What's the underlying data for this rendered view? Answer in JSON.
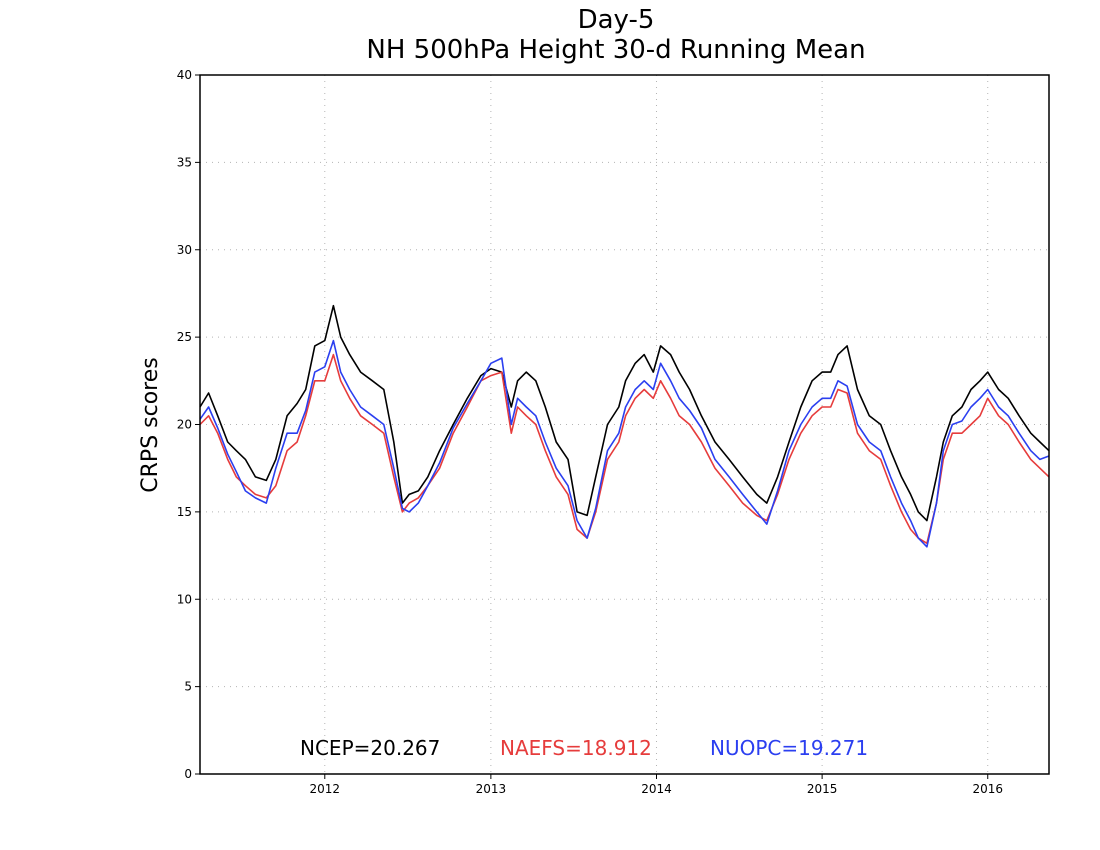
{
  "chart_data": {
    "type": "line",
    "title": "Day-5",
    "subtitle": "NH 500hPa Height 30-d Running Mean",
    "xlabel": "",
    "ylabel": "CRPS scores",
    "xlim": [
      "2011-04-01",
      "2016-05-15"
    ],
    "ylim": [
      0,
      40
    ],
    "yticks": [
      0,
      5,
      10,
      15,
      20,
      25,
      30,
      35,
      40
    ],
    "xticks": [
      {
        "label": "2012",
        "date": "2012-01-01"
      },
      {
        "label": "2013",
        "date": "2013-01-01"
      },
      {
        "label": "2014",
        "date": "2014-01-01"
      },
      {
        "label": "2015",
        "date": "2015-01-01"
      },
      {
        "label": "2016",
        "date": "2016-01-01"
      }
    ],
    "grid": true,
    "legend_placement": "bottom",
    "series": [
      {
        "name": "NCEP",
        "legend_text": "NCEP=20.267",
        "color": "#000000",
        "x": [
          "2011-04-01",
          "2011-04-20",
          "2011-05-10",
          "2011-06-01",
          "2011-06-20",
          "2011-07-10",
          "2011-08-01",
          "2011-08-25",
          "2011-09-15",
          "2011-10-10",
          "2011-11-01",
          "2011-11-20",
          "2011-12-10",
          "2012-01-01",
          "2012-01-20",
          "2012-02-05",
          "2012-02-25",
          "2012-03-20",
          "2012-04-15",
          "2012-05-10",
          "2012-06-01",
          "2012-06-20",
          "2012-07-05",
          "2012-07-25",
          "2012-08-15",
          "2012-09-10",
          "2012-10-10",
          "2012-11-10",
          "2012-12-10",
          "2013-01-01",
          "2013-01-25",
          "2013-02-15",
          "2013-03-01",
          "2013-03-20",
          "2013-04-10",
          "2013-05-01",
          "2013-05-25",
          "2013-06-20",
          "2013-07-10",
          "2013-08-01",
          "2013-08-20",
          "2013-09-15",
          "2013-10-10",
          "2013-10-25",
          "2013-11-15",
          "2013-12-05",
          "2013-12-25",
          "2014-01-10",
          "2014-02-01",
          "2014-02-20",
          "2014-03-15",
          "2014-04-10",
          "2014-05-10",
          "2014-06-10",
          "2014-07-10",
          "2014-08-10",
          "2014-09-01",
          "2014-09-25",
          "2014-10-20",
          "2014-11-15",
          "2014-12-10",
          "2015-01-01",
          "2015-01-20",
          "2015-02-05",
          "2015-02-25",
          "2015-03-20",
          "2015-04-15",
          "2015-05-10",
          "2015-06-01",
          "2015-06-25",
          "2015-07-15",
          "2015-08-01",
          "2015-08-20",
          "2015-09-10",
          "2015-09-25",
          "2015-10-15",
          "2015-11-05",
          "2015-11-25",
          "2015-12-15",
          "2016-01-01",
          "2016-01-25",
          "2016-02-15",
          "2016-03-10",
          "2016-04-05",
          "2016-04-25",
          "2016-05-15"
        ],
        "values": [
          21.0,
          21.8,
          20.5,
          19.0,
          18.5,
          18.0,
          17.0,
          16.8,
          18.0,
          20.5,
          21.2,
          22.0,
          24.5,
          24.8,
          26.8,
          25.0,
          24.0,
          23.0,
          22.5,
          22.0,
          19.0,
          15.5,
          16.0,
          16.2,
          17.0,
          18.5,
          20.0,
          21.5,
          22.8,
          23.2,
          23.0,
          21.0,
          22.5,
          23.0,
          22.5,
          21.0,
          19.0,
          18.0,
          15.0,
          14.8,
          17.0,
          20.0,
          21.0,
          22.5,
          23.5,
          24.0,
          23.0,
          24.5,
          24.0,
          23.0,
          22.0,
          20.5,
          19.0,
          18.0,
          17.0,
          16.0,
          15.5,
          17.0,
          19.0,
          21.0,
          22.5,
          23.0,
          23.0,
          24.0,
          24.5,
          22.0,
          20.5,
          20.0,
          18.5,
          17.0,
          16.0,
          15.0,
          14.5,
          17.0,
          19.0,
          20.5,
          21.0,
          22.0,
          22.5,
          23.0,
          22.0,
          21.5,
          20.5,
          19.5,
          19.0,
          18.5
        ]
      },
      {
        "name": "NAEFS",
        "legend_text": "NAEFS=18.912",
        "color": "#e63c3c",
        "x": [
          "2011-04-01",
          "2011-04-20",
          "2011-05-10",
          "2011-06-01",
          "2011-06-20",
          "2011-07-10",
          "2011-08-01",
          "2011-08-25",
          "2011-09-15",
          "2011-10-10",
          "2011-11-01",
          "2011-11-20",
          "2011-12-10",
          "2012-01-01",
          "2012-01-20",
          "2012-02-05",
          "2012-02-25",
          "2012-03-20",
          "2012-04-15",
          "2012-05-10",
          "2012-06-01",
          "2012-06-20",
          "2012-07-05",
          "2012-07-25",
          "2012-08-15",
          "2012-09-10",
          "2012-10-10",
          "2012-11-10",
          "2012-12-10",
          "2013-01-01",
          "2013-01-25",
          "2013-02-15",
          "2013-03-01",
          "2013-03-20",
          "2013-04-10",
          "2013-05-01",
          "2013-05-25",
          "2013-06-20",
          "2013-07-10",
          "2013-08-01",
          "2013-08-20",
          "2013-09-15",
          "2013-10-10",
          "2013-10-25",
          "2013-11-15",
          "2013-12-05",
          "2013-12-25",
          "2014-01-10",
          "2014-02-01",
          "2014-02-20",
          "2014-03-15",
          "2014-04-10",
          "2014-05-10",
          "2014-06-10",
          "2014-07-10",
          "2014-08-10",
          "2014-09-01",
          "2014-09-25",
          "2014-10-20",
          "2014-11-15",
          "2014-12-10",
          "2015-01-01",
          "2015-01-20",
          "2015-02-05",
          "2015-02-25",
          "2015-03-20",
          "2015-04-15",
          "2015-05-10",
          "2015-06-01",
          "2015-06-25",
          "2015-07-15",
          "2015-08-01",
          "2015-08-20",
          "2015-09-10",
          "2015-09-25",
          "2015-10-15",
          "2015-11-05",
          "2015-11-25",
          "2015-12-15",
          "2016-01-01",
          "2016-01-25",
          "2016-02-15",
          "2016-03-10",
          "2016-04-05",
          "2016-04-25",
          "2016-05-15"
        ],
        "values": [
          20.0,
          20.5,
          19.5,
          18.0,
          17.0,
          16.5,
          16.0,
          15.8,
          16.5,
          18.5,
          19.0,
          20.5,
          22.5,
          22.5,
          24.0,
          22.5,
          21.5,
          20.5,
          20.0,
          19.5,
          17.0,
          15.0,
          15.5,
          15.8,
          16.5,
          17.5,
          19.5,
          21.0,
          22.5,
          22.8,
          23.0,
          19.5,
          21.0,
          20.5,
          20.0,
          18.5,
          17.0,
          16.0,
          14.0,
          13.5,
          15.0,
          18.0,
          19.0,
          20.5,
          21.5,
          22.0,
          21.5,
          22.5,
          21.5,
          20.5,
          20.0,
          19.0,
          17.5,
          16.5,
          15.5,
          14.8,
          14.5,
          16.0,
          18.0,
          19.5,
          20.5,
          21.0,
          21.0,
          22.0,
          21.8,
          19.5,
          18.5,
          18.0,
          16.5,
          15.0,
          14.0,
          13.5,
          13.2,
          15.5,
          18.0,
          19.5,
          19.5,
          20.0,
          20.5,
          21.5,
          20.5,
          20.0,
          19.0,
          18.0,
          17.5,
          17.0
        ]
      },
      {
        "name": "NUOPC",
        "legend_text": "NUOPC=19.271",
        "color": "#2b3ff0",
        "x": [
          "2011-04-01",
          "2011-04-20",
          "2011-05-10",
          "2011-06-01",
          "2011-06-20",
          "2011-07-10",
          "2011-08-01",
          "2011-08-25",
          "2011-09-15",
          "2011-10-10",
          "2011-11-01",
          "2011-11-20",
          "2011-12-10",
          "2012-01-01",
          "2012-01-20",
          "2012-02-05",
          "2012-02-25",
          "2012-03-20",
          "2012-04-15",
          "2012-05-10",
          "2012-06-01",
          "2012-06-20",
          "2012-07-05",
          "2012-07-25",
          "2012-08-15",
          "2012-09-10",
          "2012-10-10",
          "2012-11-10",
          "2012-12-10",
          "2013-01-01",
          "2013-01-25",
          "2013-02-15",
          "2013-03-01",
          "2013-03-20",
          "2013-04-10",
          "2013-05-01",
          "2013-05-25",
          "2013-06-20",
          "2013-07-10",
          "2013-08-01",
          "2013-08-20",
          "2013-09-15",
          "2013-10-10",
          "2013-10-25",
          "2013-11-15",
          "2013-12-05",
          "2013-12-25",
          "2014-01-10",
          "2014-02-01",
          "2014-02-20",
          "2014-03-15",
          "2014-04-10",
          "2014-05-10",
          "2014-06-10",
          "2014-07-10",
          "2014-08-10",
          "2014-09-01",
          "2014-09-25",
          "2014-10-20",
          "2014-11-15",
          "2014-12-10",
          "2015-01-01",
          "2015-01-20",
          "2015-02-05",
          "2015-02-25",
          "2015-03-20",
          "2015-04-15",
          "2015-05-10",
          "2015-06-01",
          "2015-06-25",
          "2015-07-15",
          "2015-08-01",
          "2015-08-20",
          "2015-09-10",
          "2015-09-25",
          "2015-10-15",
          "2015-11-05",
          "2015-11-25",
          "2015-12-15",
          "2016-01-01",
          "2016-01-25",
          "2016-02-15",
          "2016-03-10",
          "2016-04-05",
          "2016-04-25",
          "2016-05-15"
        ],
        "values": [
          20.3,
          21.0,
          19.8,
          18.3,
          17.3,
          16.2,
          15.8,
          15.5,
          17.5,
          19.5,
          19.5,
          20.8,
          23.0,
          23.3,
          24.8,
          23.0,
          22.0,
          21.0,
          20.5,
          20.0,
          17.5,
          15.2,
          15.0,
          15.5,
          16.5,
          17.8,
          19.8,
          21.2,
          22.5,
          23.5,
          23.8,
          20.0,
          21.5,
          21.0,
          20.5,
          19.0,
          17.5,
          16.5,
          14.5,
          13.5,
          15.2,
          18.5,
          19.5,
          21.0,
          22.0,
          22.5,
          22.0,
          23.5,
          22.5,
          21.5,
          20.8,
          19.8,
          18.0,
          17.0,
          16.0,
          15.0,
          14.3,
          16.2,
          18.5,
          20.0,
          21.0,
          21.5,
          21.5,
          22.5,
          22.2,
          20.0,
          19.0,
          18.5,
          17.0,
          15.5,
          14.5,
          13.5,
          13.0,
          15.5,
          18.5,
          20.0,
          20.2,
          21.0,
          21.5,
          22.0,
          21.0,
          20.5,
          19.5,
          18.5,
          18.0,
          18.2
        ]
      }
    ]
  }
}
